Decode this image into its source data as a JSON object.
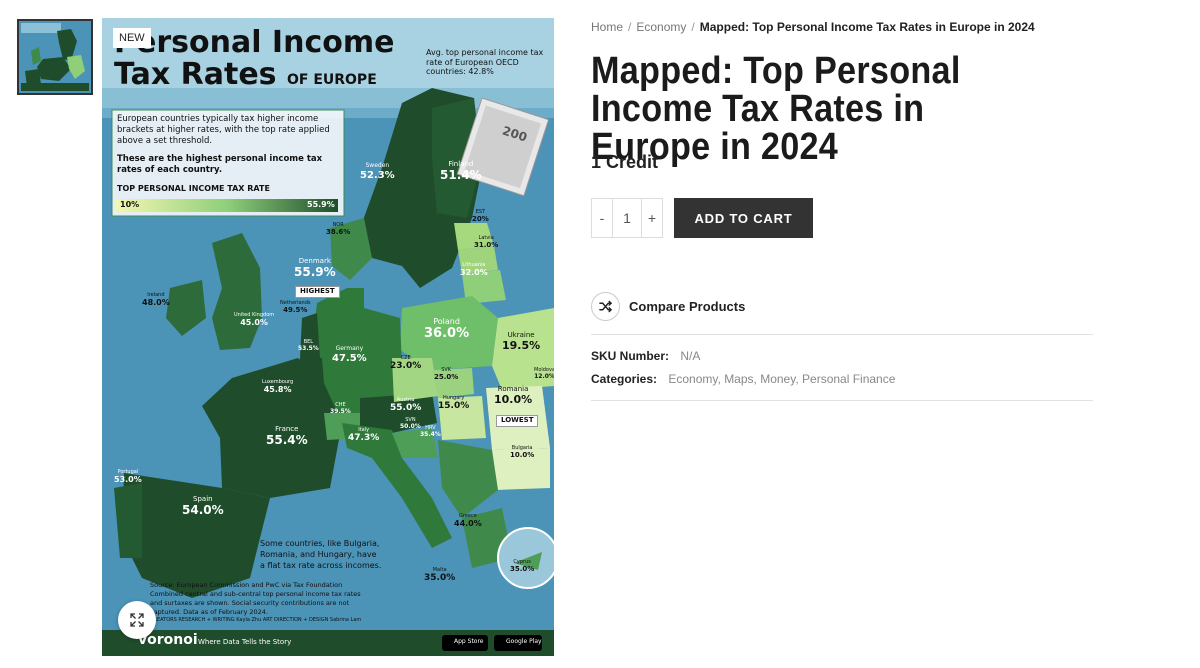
{
  "gallery": {
    "badge": "NEW",
    "zoom_icon": "expand-arrows-icon",
    "image": {
      "title_line1": "Personal Income",
      "title_line2": "Tax Rates",
      "title_suffix": "OF EUROPE",
      "oecd_note": "Avg. top personal income tax rate of European OECD countries: 42.8%",
      "intro_text": "European countries typically tax higher income brackets at higher rates, with the top rate applied above a set threshold.",
      "intro_bold": "These are the highest personal income tax rates of each country.",
      "legend_title": "TOP PERSONAL INCOME TAX RATE",
      "legend_min": "10%",
      "legend_max": "55.9%",
      "highest_tag": "HIGHEST",
      "lowest_tag": "LOWEST",
      "countries": [
        {
          "name": "Sweden",
          "rate": "52.3%"
        },
        {
          "name": "Finland",
          "rate": "51.4%"
        },
        {
          "name": "NOR",
          "rate": "38.6%"
        },
        {
          "name": "EST",
          "rate": "20%"
        },
        {
          "name": "Latvia",
          "rate": "31.0%"
        },
        {
          "name": "Lithuania",
          "rate": "32.0%"
        },
        {
          "name": "Denmark",
          "rate": "55.9%"
        },
        {
          "name": "Ireland",
          "rate": "48.0%"
        },
        {
          "name": "United Kingdom",
          "rate": "45.0%"
        },
        {
          "name": "Netherlands",
          "rate": "49.5%"
        },
        {
          "name": "Poland",
          "rate": "36.0%"
        },
        {
          "name": "Ukraine",
          "rate": "19.5%"
        },
        {
          "name": "BEL",
          "rate": "53.5%"
        },
        {
          "name": "Germany",
          "rate": "47.5%"
        },
        {
          "name": "CZE",
          "rate": "23.0%"
        },
        {
          "name": "SVK",
          "rate": "25.0%"
        },
        {
          "name": "Luxembourg",
          "rate": "45.8%"
        },
        {
          "name": "Austria",
          "rate": "55.0%"
        },
        {
          "name": "Hungary",
          "rate": "15.0%"
        },
        {
          "name": "Romania",
          "rate": "10.0%"
        },
        {
          "name": "Moldova",
          "rate": "12.0%"
        },
        {
          "name": "CHE",
          "rate": "39.5%"
        },
        {
          "name": "SVN",
          "rate": "50.0%"
        },
        {
          "name": "HRV",
          "rate": "35.4%"
        },
        {
          "name": "France",
          "rate": "55.4%"
        },
        {
          "name": "Italy",
          "rate": "47.3%"
        },
        {
          "name": "Bulgaria",
          "rate": "10.0%"
        },
        {
          "name": "Portugal",
          "rate": "53.0%"
        },
        {
          "name": "Spain",
          "rate": "54.0%"
        },
        {
          "name": "Greece",
          "rate": "44.0%"
        },
        {
          "name": "Malta",
          "rate": "35.0%"
        },
        {
          "name": "Cyprus",
          "rate": "35.0%"
        }
      ],
      "note_line1": "Some countries, like Bulgaria,",
      "note_line2": "Romania, and Hungary, have",
      "note_line3": "a flat tax rate across incomes.",
      "source_line1": "Source: European Commission and PwC via Tax Foundation",
      "source_line2": "Combined central and sub-central top personal income tax rates",
      "source_line3": "and surtaxes are shown. Social security contributions are not",
      "source_line4": "captured. Data as of February 2024.",
      "credits": "CREATORS  RESEARCH + WRITING Kayla Zhu  ART DIRECTION + DESIGN Sabrina Lam",
      "brand": "voronoi",
      "tagline": "Where Data Tells the Story",
      "app_store": "App Store",
      "google_play": "Google Play",
      "banknote": "200"
    }
  },
  "breadcrumb": {
    "home": "Home",
    "category": "Economy",
    "current": "Mapped: Top Personal Income Tax Rates in Europe in 2024",
    "separator": "/"
  },
  "product": {
    "title": "Mapped: Top Personal Income Tax Rates in Europe in 2024",
    "price": "1 Credit",
    "qty_minus": "-",
    "qty_value": "1",
    "qty_plus": "+",
    "add_to_cart": "ADD TO CART",
    "compare_label": "Compare Products",
    "compare_icon": "shuffle-icon",
    "sku_label": "SKU Number:",
    "sku_value": "N/A",
    "categories_label": "Categories:",
    "categories": [
      "Economy",
      "Maps",
      "Money",
      "Personal Finance"
    ]
  },
  "colors": {
    "dark_button": "#333333",
    "sea": "#4b93b7",
    "dark_green": "#1f4d2b",
    "mid_green": "#3f8a4a",
    "light_green": "#8fcf7a",
    "pale_green": "#d6ecb0"
  }
}
